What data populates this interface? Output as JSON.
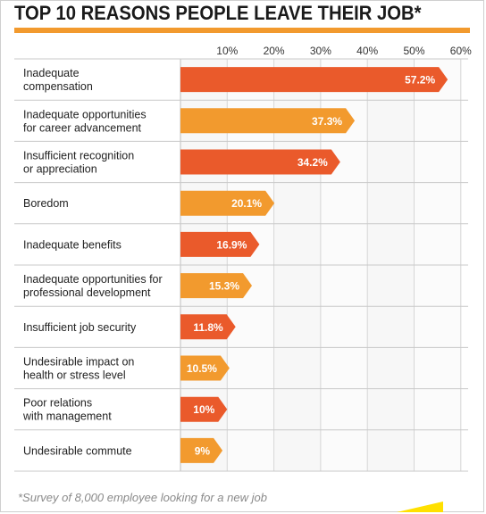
{
  "title": "TOP 10 REASONS PEOPLE LEAVE THEIR JOB*",
  "footnote": "*Survey of 8,000 employee looking for a new job",
  "colors": {
    "accent_orange": "#f29a2e",
    "red_orange": "#ea5a2b",
    "title_rule": "#f29a2e",
    "row_bg": "#ffffff",
    "grid": "#d6d6d6",
    "footer_yellow": "#ffe000"
  },
  "chart_data": {
    "type": "bar",
    "orientation": "horizontal",
    "xlim": [
      0,
      60
    ],
    "x_ticks": [
      "10%",
      "20%",
      "30%",
      "40%",
      "50%",
      "60%"
    ],
    "x_tick_values": [
      10,
      20,
      30,
      40,
      50,
      60
    ],
    "grid": true,
    "categories": [
      "Inadequate\ncompensation",
      "Inadequate opportunities\nfor career advancement",
      "Insufficient recognition\nor appreciation",
      "Boredom",
      "Inadequate benefits",
      "Inadequate opportunities for\nprofessional development",
      "Insufficient job security",
      "Undesirable impact on\nhealth or stress level",
      "Poor relations\nwith management",
      "Undesirable commute"
    ],
    "values": [
      57.2,
      37.3,
      34.2,
      20.1,
      16.9,
      15.3,
      11.8,
      10.5,
      10,
      9
    ],
    "value_labels": [
      "57.2%",
      "37.3%",
      "34.2%",
      "20.1%",
      "16.9%",
      "15.3%",
      "11.8%",
      "10.5%",
      "10%",
      "9%"
    ],
    "bar_colors": [
      "#ea5a2b",
      "#f29a2e",
      "#ea5a2b",
      "#f29a2e",
      "#ea5a2b",
      "#f29a2e",
      "#ea5a2b",
      "#f29a2e",
      "#ea5a2b",
      "#f29a2e"
    ]
  }
}
